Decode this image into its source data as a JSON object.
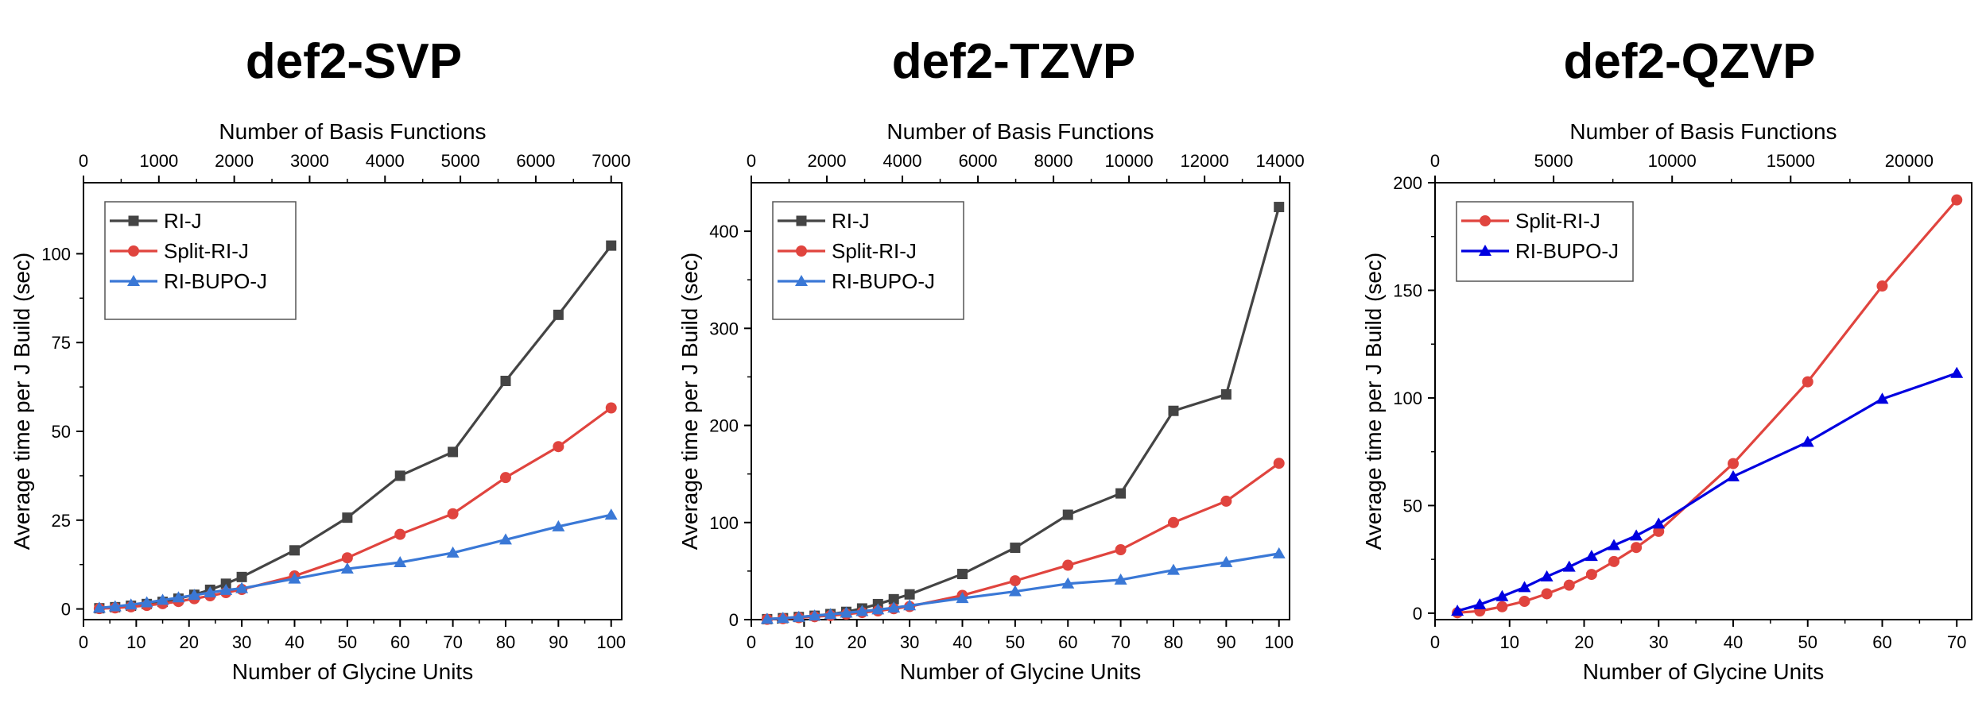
{
  "chart_data": [
    {
      "type": "line",
      "title": "def2-SVP",
      "xlabel": "Number of Glycine Units",
      "ylabel": "Average time per J Build (sec)",
      "x2label": "Number of Basis Functions",
      "xlim": [
        0,
        102
      ],
      "ylim": [
        -3,
        120
      ],
      "x2lim": [
        0,
        7140
      ],
      "xticks": [
        0,
        10,
        20,
        30,
        40,
        50,
        60,
        70,
        80,
        90,
        100
      ],
      "yticks": [
        0,
        25,
        50,
        75,
        100
      ],
      "x2ticks": [
        0,
        1000,
        2000,
        3000,
        4000,
        5000,
        6000,
        7000
      ],
      "legend": "top-left",
      "x": [
        3,
        6,
        9,
        12,
        15,
        18,
        21,
        24,
        27,
        30,
        40,
        50,
        60,
        70,
        80,
        90,
        100
      ],
      "series": [
        {
          "name": "RI-J",
          "marker": "square",
          "color": "#444444",
          "values": [
            0.2,
            0.5,
            0.9,
            1.4,
            2.0,
            2.9,
            4.0,
            5.4,
            7.1,
            9.0,
            16.5,
            25.7,
            37.5,
            44.2,
            64.2,
            82.8,
            102.3
          ]
        },
        {
          "name": "Split-RI-J",
          "marker": "circle",
          "color": "#e0443e",
          "values": [
            0.1,
            0.3,
            0.6,
            1.0,
            1.5,
            2.1,
            2.9,
            3.7,
            4.6,
            5.5,
            9.3,
            14.4,
            21.0,
            26.8,
            37.0,
            45.7,
            56.6
          ]
        },
        {
          "name": "RI-BUPO-J",
          "marker": "triangle",
          "color": "#3a78d6",
          "values": [
            0.3,
            0.7,
            1.2,
            1.8,
            2.5,
            3.2,
            3.9,
            4.6,
            5.3,
            5.8,
            8.5,
            11.3,
            13.1,
            15.8,
            19.5,
            23.2,
            26.5
          ]
        }
      ]
    },
    {
      "type": "line",
      "title": "def2-TZVP",
      "xlabel": "Number of Glycine Units",
      "ylabel": "Average time per J Build (sec)",
      "x2label": "Number of Basis Functions",
      "xlim": [
        0,
        102
      ],
      "ylim": [
        0,
        450
      ],
      "x2lim": [
        0,
        14250
      ],
      "xticks": [
        0,
        10,
        20,
        30,
        40,
        50,
        60,
        70,
        80,
        90,
        100
      ],
      "yticks": [
        0,
        100,
        200,
        300,
        400
      ],
      "x2ticks": [
        0,
        2000,
        4000,
        6000,
        8000,
        10000,
        12000,
        14000
      ],
      "legend": "top-left",
      "x": [
        3,
        6,
        9,
        12,
        15,
        18,
        21,
        24,
        27,
        30,
        40,
        50,
        60,
        70,
        80,
        90,
        100
      ],
      "series": [
        {
          "name": "RI-J",
          "marker": "square",
          "color": "#444444",
          "values": [
            0.5,
            1.5,
            2.7,
            4.0,
            5.7,
            8.0,
            11.5,
            16.0,
            21.0,
            26.0,
            47.0,
            74.0,
            108.0,
            130.0,
            215.0,
            232.0,
            425.0
          ]
        },
        {
          "name": "Split-RI-J",
          "marker": "circle",
          "color": "#e0443e",
          "values": [
            0.3,
            1.0,
            2.0,
            3.0,
            4.2,
            5.6,
            7.3,
            9.0,
            11.2,
            13.5,
            25.0,
            40.0,
            56.0,
            72.0,
            100.0,
            122.0,
            161.0
          ]
        },
        {
          "name": "RI-BUPO-J",
          "marker": "triangle",
          "color": "#3a78d6",
          "values": [
            0.6,
            1.5,
            2.7,
            4.0,
            5.4,
            7.0,
            8.6,
            10.3,
            12.2,
            14.5,
            22.0,
            29.0,
            37.0,
            41.0,
            51.0,
            59.0,
            68.0
          ]
        }
      ]
    },
    {
      "type": "line",
      "title": "def2-QZVP",
      "xlabel": "Number of Glycine Units",
      "ylabel": "Average time per J Build (sec)",
      "x2label": "Number of Basis Functions",
      "xlim": [
        0,
        72
      ],
      "ylim": [
        -3,
        200
      ],
      "x2lim": [
        0,
        22636
      ],
      "xticks": [
        0,
        10,
        20,
        30,
        40,
        50,
        60,
        70
      ],
      "yticks": [
        0,
        50,
        100,
        150,
        200
      ],
      "x2ticks": [
        0,
        5000,
        10000,
        15000,
        20000
      ],
      "legend": "top-left",
      "x": [
        3,
        6,
        9,
        12,
        15,
        18,
        21,
        24,
        27,
        30,
        40,
        50,
        60,
        70
      ],
      "series": [
        {
          "name": "Split-RI-J",
          "marker": "circle",
          "color": "#e0443e",
          "values": [
            0.2,
            1.0,
            3.0,
            5.5,
            9.0,
            13.0,
            18.0,
            24.0,
            30.5,
            38.0,
            69.5,
            107.5,
            152.0,
            192.0
          ]
        },
        {
          "name": "RI-BUPO-J",
          "marker": "triangle",
          "color": "#0000e0",
          "values": [
            1.0,
            4.0,
            7.8,
            12.0,
            17.0,
            21.5,
            26.5,
            31.5,
            36.0,
            41.5,
            63.5,
            79.5,
            99.5,
            111.5
          ]
        }
      ]
    }
  ]
}
